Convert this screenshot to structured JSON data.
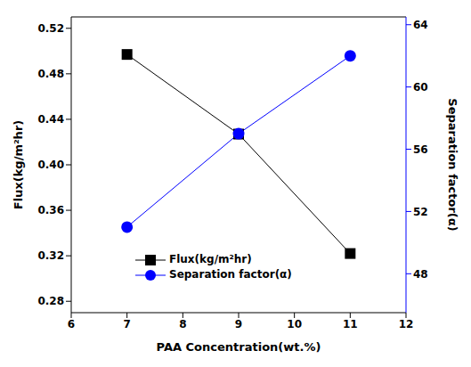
{
  "chart_data": {
    "type": "line",
    "xlabel": "PAA Concentration(wt.%)",
    "ylabel": "Flux(kg/m²hr)",
    "y2label": "Separation factor(α)",
    "x": [
      7,
      9,
      11
    ],
    "series": [
      {
        "name": "Flux(kg/m²hr)",
        "color": "#000000",
        "marker": "square",
        "values": [
          0.497,
          0.427,
          0.322
        ]
      },
      {
        "name": "Separation factor(α)",
        "color": "#0000ff",
        "marker": "circle",
        "axis": "y2",
        "values": [
          51,
          57,
          62
        ]
      }
    ],
    "xlim": [
      6,
      12
    ],
    "xticks": [
      6,
      7,
      8,
      9,
      10,
      11,
      12
    ],
    "ylim": [
      0.27,
      0.53
    ],
    "yticks": [
      0.28,
      0.32,
      0.36,
      {
        "value": 0.4,
        "label": "0.40"
      },
      0.44,
      0.48,
      0.52
    ],
    "y2lim": [
      45.5,
      64.5
    ],
    "y2ticks": [
      48,
      52,
      56,
      60,
      64
    ],
    "grid": false,
    "legend": "lower center"
  }
}
